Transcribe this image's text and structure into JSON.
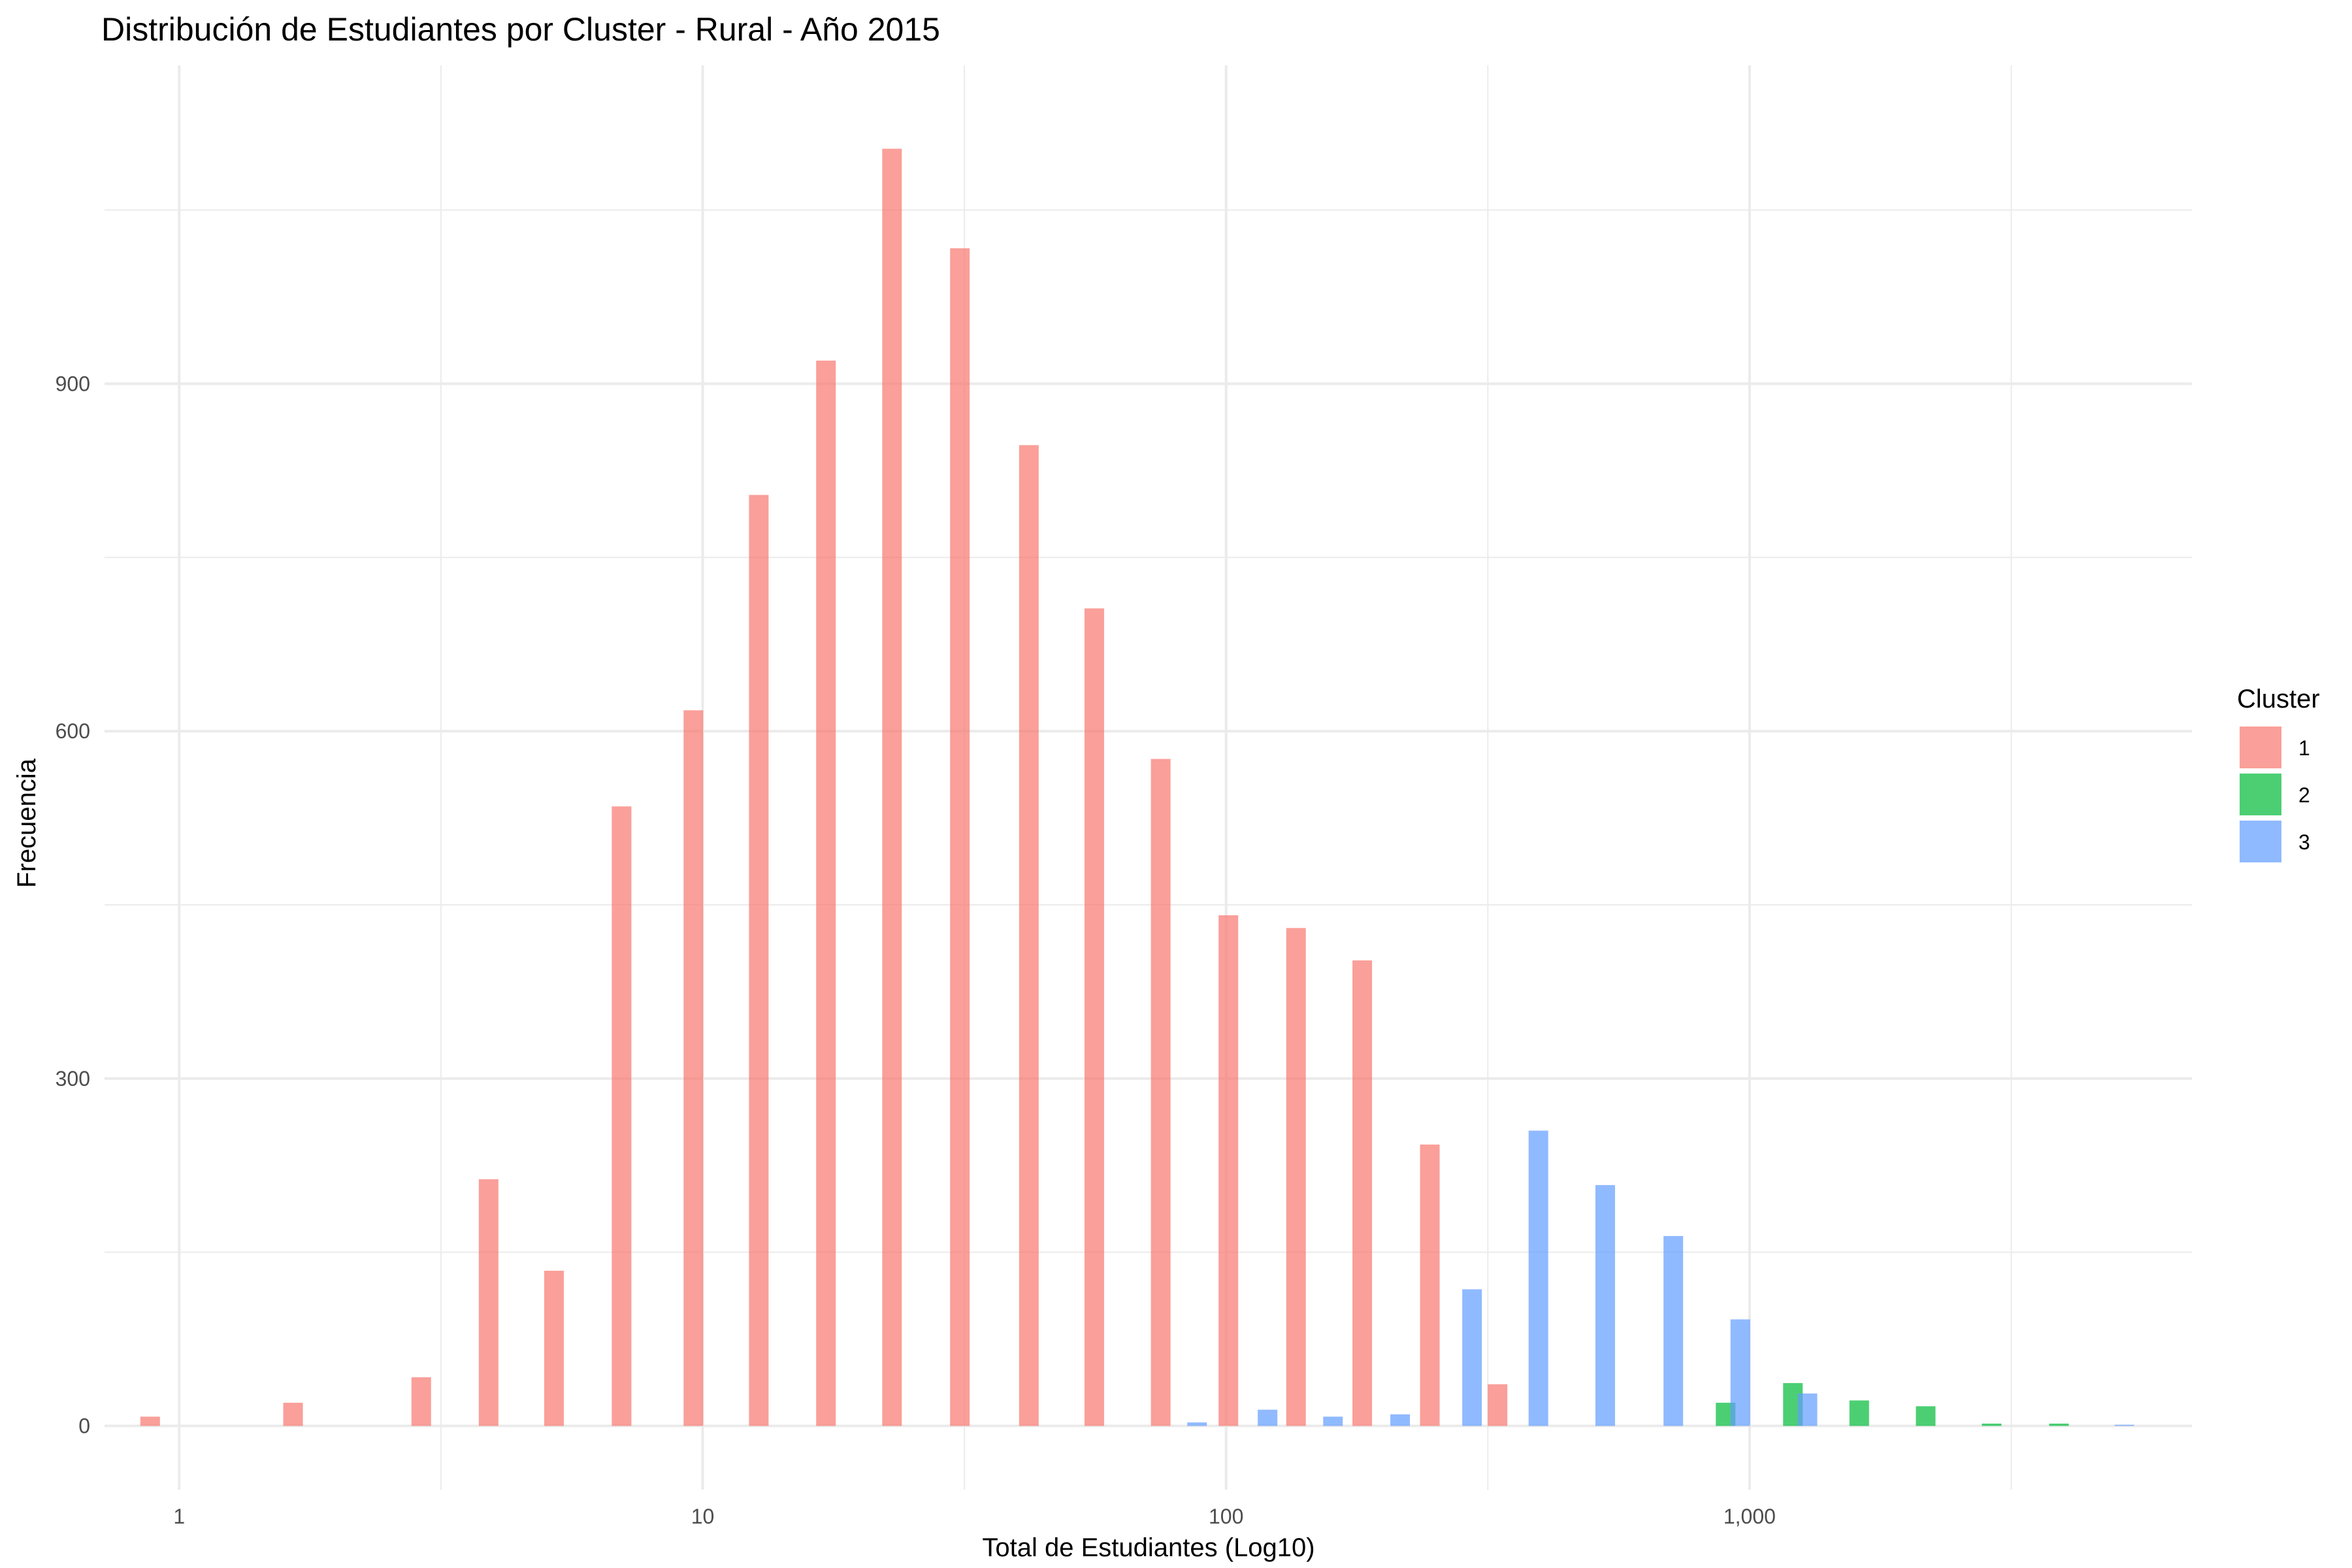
{
  "chart_data": {
    "type": "bar",
    "title": "Distribución de Estudiantes por Cluster - Rural - Año 2015",
    "xlabel": "Total de Estudiantes (Log10)",
    "ylabel": "Frecuencia",
    "x_scale": "log10",
    "xlim": [
      0.72,
      7000
    ],
    "ylim": [
      -55,
      1175
    ],
    "x_ticks": [
      1,
      10,
      100,
      1000
    ],
    "x_tick_labels": [
      "1",
      "10",
      "100",
      "1,000"
    ],
    "y_ticks": [
      0,
      300,
      600,
      900
    ],
    "y_tick_labels": [
      "0",
      "300",
      "600",
      "900"
    ],
    "grid": true,
    "legend": {
      "title": "Cluster",
      "position": "right"
    },
    "series": [
      {
        "name": "1",
        "color": "#F8766D",
        "points": [
          {
            "x": 0.88,
            "y": 8
          },
          {
            "x": 1.65,
            "y": 20
          },
          {
            "x": 2.9,
            "y": 42
          },
          {
            "x": 3.9,
            "y": 213
          },
          {
            "x": 5.2,
            "y": 134
          },
          {
            "x": 7.0,
            "y": 535
          },
          {
            "x": 9.6,
            "y": 618
          },
          {
            "x": 12.8,
            "y": 804
          },
          {
            "x": 17.2,
            "y": 920
          },
          {
            "x": 23.0,
            "y": 1103
          },
          {
            "x": 31.0,
            "y": 1017
          },
          {
            "x": 42.0,
            "y": 847
          },
          {
            "x": 56.0,
            "y": 706
          },
          {
            "x": 75.0,
            "y": 576
          },
          {
            "x": 101.0,
            "y": 441
          },
          {
            "x": 136.0,
            "y": 430
          },
          {
            "x": 182.0,
            "y": 402
          },
          {
            "x": 245.0,
            "y": 243
          },
          {
            "x": 330.0,
            "y": 36
          }
        ]
      },
      {
        "name": "2",
        "color": "#00BA38",
        "points": [
          {
            "x": 900,
            "y": 20
          },
          {
            "x": 1210,
            "y": 37
          },
          {
            "x": 1620,
            "y": 22
          },
          {
            "x": 2170,
            "y": 17
          },
          {
            "x": 2900,
            "y": 2
          },
          {
            "x": 3900,
            "y": 2
          }
        ]
      },
      {
        "name": "3",
        "color": "#619CFF",
        "points": [
          {
            "x": 88,
            "y": 3
          },
          {
            "x": 120,
            "y": 14
          },
          {
            "x": 160,
            "y": 8
          },
          {
            "x": 215,
            "y": 10
          },
          {
            "x": 295,
            "y": 118
          },
          {
            "x": 395,
            "y": 255
          },
          {
            "x": 530,
            "y": 208
          },
          {
            "x": 715,
            "y": 164
          },
          {
            "x": 960,
            "y": 92
          },
          {
            "x": 1290,
            "y": 28
          },
          {
            "x": 5200,
            "y": 1
          }
        ]
      }
    ]
  }
}
